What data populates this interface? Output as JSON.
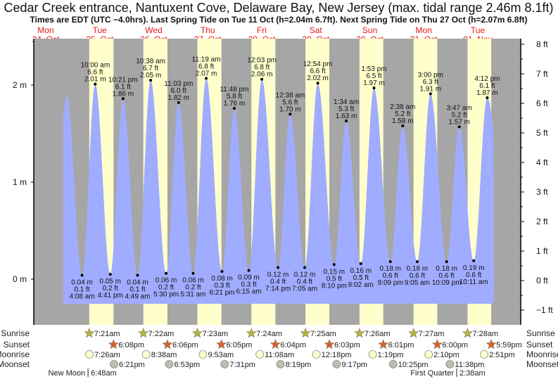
{
  "header": {
    "title": "Cedar Creek entrance, Nantuxent Cove, Delaware Bay, New Jersey (max. tidal range 2.46m 8.1ft)",
    "subtitle": "Times are EDT (UTC −4.0hrs). Last Spring Tide on Tue 11 Oct (h=2.04m 6.7ft). Next Spring Tide on Thu 27 Oct (h=2.07m 6.8ft)"
  },
  "days": [
    {
      "dow": "Mon",
      "date": "24–Oct"
    },
    {
      "dow": "Tue",
      "date": "25–Oct"
    },
    {
      "dow": "Wed",
      "date": "26–Oct"
    },
    {
      "dow": "Thu",
      "date": "27–Oct"
    },
    {
      "dow": "Fri",
      "date": "28–Oct"
    },
    {
      "dow": "Sat",
      "date": "29–Oct"
    },
    {
      "dow": "Sun",
      "date": "30–Oct"
    },
    {
      "dow": "Mon",
      "date": "31–Oct"
    },
    {
      "dow": "Tue",
      "date": "01–Nov"
    }
  ],
  "colors": {
    "night": "#a6a6a6",
    "day": "#ffffcc",
    "water": "#a0acff",
    "day_label": "#e41a1a",
    "sunrise": "#b5b53a",
    "sunset": "#d95f26",
    "moonrise": "#ffffcc",
    "moonset": "#bcbcb0"
  },
  "chart_data": {
    "type": "area",
    "title": "Cedar Creek entrance, Nantuxent Cove, Delaware Bay, New Jersey",
    "y_left": {
      "unit": "m",
      "ticks": [
        "0 m",
        "1 m",
        "2 m"
      ],
      "values": [
        0,
        1,
        2
      ]
    },
    "y_right": {
      "unit": "ft",
      "ticks": [
        "−1 ft",
        "0 ft",
        "1 ft",
        "2 ft",
        "3 ft",
        "4 ft",
        "5 ft",
        "6 ft",
        "7 ft",
        "8 ft"
      ],
      "values": [
        -1,
        0,
        1,
        2,
        3,
        4,
        5,
        6,
        7,
        8
      ]
    },
    "start": {
      "day": 0,
      "time": "7:50 pm",
      "m": 1.7
    },
    "unlabeled_peak": {
      "day": 0,
      "time": "9:20 pm",
      "m": 1.9
    },
    "end": {
      "day": 8,
      "time": "7:12 pm"
    },
    "tides": [
      {
        "day": 1,
        "type": "low",
        "time": "4:08 am",
        "ft": "0.1 ft",
        "m": 0.04,
        "m_label": "0.04 m"
      },
      {
        "day": 1,
        "type": "high",
        "time": "10:00 am",
        "ft": "6.6 ft",
        "m": 2.01,
        "m_label": "2.01 m"
      },
      {
        "day": 1,
        "type": "low",
        "time": "4:41 pm",
        "ft": "0.2 ft",
        "m": 0.05,
        "m_label": "0.05 m"
      },
      {
        "day": 1,
        "type": "high",
        "time": "10:21 pm",
        "ft": "6.1 ft",
        "m": 1.86,
        "m_label": "1.86 m"
      },
      {
        "day": 2,
        "type": "low",
        "time": "4:49 am",
        "ft": "0.1 ft",
        "m": 0.04,
        "m_label": "0.04 m"
      },
      {
        "day": 2,
        "type": "high",
        "time": "10:38 am",
        "ft": "6.7 ft",
        "m": 2.05,
        "m_label": "2.05 m"
      },
      {
        "day": 2,
        "type": "low",
        "time": "5:30 pm",
        "ft": "0.2 ft",
        "m": 0.06,
        "m_label": "0.06 m"
      },
      {
        "day": 2,
        "type": "high",
        "time": "11:03 pm",
        "ft": "6.0 ft",
        "m": 1.82,
        "m_label": "1.82 m"
      },
      {
        "day": 3,
        "type": "low",
        "time": "5:31 am",
        "ft": "0.2 ft",
        "m": 0.06,
        "m_label": "0.06 m"
      },
      {
        "day": 3,
        "type": "high",
        "time": "11:19 am",
        "ft": "6.8 ft",
        "m": 2.07,
        "m_label": "2.07 m"
      },
      {
        "day": 3,
        "type": "low",
        "time": "6:21 pm",
        "ft": "0.3 ft",
        "m": 0.08,
        "m_label": "0.08 m"
      },
      {
        "day": 3,
        "type": "high",
        "time": "11:48 pm",
        "ft": "5.8 ft",
        "m": 1.76,
        "m_label": "1.76 m"
      },
      {
        "day": 4,
        "type": "low",
        "time": "6:15 am",
        "ft": "0.3 ft",
        "m": 0.09,
        "m_label": "0.09 m"
      },
      {
        "day": 4,
        "type": "high",
        "time": "12:03 pm",
        "ft": "6.8 ft",
        "m": 2.06,
        "m_label": "2.06 m"
      },
      {
        "day": 4,
        "type": "low",
        "time": "7:14 pm",
        "ft": "0.4 ft",
        "m": 0.12,
        "m_label": "0.12 m"
      },
      {
        "day": 5,
        "type": "high",
        "time": "12:38 am",
        "ft": "5.6 ft",
        "m": 1.7,
        "m_label": "1.70 m"
      },
      {
        "day": 5,
        "type": "low",
        "time": "7:05 am",
        "ft": "0.4 ft",
        "m": 0.12,
        "m_label": "0.12 m"
      },
      {
        "day": 5,
        "type": "high",
        "time": "12:54 pm",
        "ft": "6.6 ft",
        "m": 2.02,
        "m_label": "2.02 m"
      },
      {
        "day": 5,
        "type": "low",
        "time": "8:10 pm",
        "ft": "0.5 ft",
        "m": 0.15,
        "m_label": "0.15 m"
      },
      {
        "day": 6,
        "type": "high",
        "time": "1:34 am",
        "ft": "5.3 ft",
        "m": 1.63,
        "m_label": "1.63 m"
      },
      {
        "day": 6,
        "type": "low",
        "time": "8:02 am",
        "ft": "0.5 ft",
        "m": 0.16,
        "m_label": "0.16 m"
      },
      {
        "day": 6,
        "type": "high",
        "time": "1:53 pm",
        "ft": "6.5 ft",
        "m": 1.97,
        "m_label": "1.97 m"
      },
      {
        "day": 6,
        "type": "low",
        "time": "9:09 pm",
        "ft": "0.6 ft",
        "m": 0.18,
        "m_label": "0.18 m"
      },
      {
        "day": 7,
        "type": "high",
        "time": "2:38 am",
        "ft": "5.2 ft",
        "m": 1.58,
        "m_label": "1.58 m"
      },
      {
        "day": 7,
        "type": "low",
        "time": "9:05 am",
        "ft": "0.6 ft",
        "m": 0.18,
        "m_label": "0.18 m"
      },
      {
        "day": 7,
        "type": "high",
        "time": "3:00 pm",
        "ft": "6.3 ft",
        "m": 1.91,
        "m_label": "1.91 m"
      },
      {
        "day": 7,
        "type": "low",
        "time": "10:09 pm",
        "ft": "0.6 ft",
        "m": 0.18,
        "m_label": "0.18 m"
      },
      {
        "day": 8,
        "type": "high",
        "time": "3:47 am",
        "ft": "5.2 ft",
        "m": 1.57,
        "m_label": "1.57 m"
      },
      {
        "day": 8,
        "type": "low",
        "time": "10:11 am",
        "ft": "0.6 ft",
        "m": 0.19,
        "m_label": "0.19 m"
      },
      {
        "day": 8,
        "type": "high",
        "time": "4:12 pm",
        "ft": "6.1 ft",
        "m": 1.87,
        "m_label": "1.87 m"
      }
    ]
  },
  "rows": {
    "sunrise": "Sunrise",
    "sunset": "Sunset",
    "moonrise": "Moonrise",
    "moonset": "Moonset"
  },
  "sun_moon": {
    "sunrise": [
      {
        "day": 1,
        "t": "7:21am"
      },
      {
        "day": 2,
        "t": "7:22am"
      },
      {
        "day": 3,
        "t": "7:23am"
      },
      {
        "day": 4,
        "t": "7:24am"
      },
      {
        "day": 5,
        "t": "7:25am"
      },
      {
        "day": 6,
        "t": "7:26am"
      },
      {
        "day": 7,
        "t": "7:27am"
      },
      {
        "day": 8,
        "t": "7:28am"
      }
    ],
    "sunset": [
      {
        "day": 1,
        "t": "6:08pm"
      },
      {
        "day": 2,
        "t": "6:06pm"
      },
      {
        "day": 3,
        "t": "6:05pm"
      },
      {
        "day": 4,
        "t": "6:04pm"
      },
      {
        "day": 5,
        "t": "6:03pm"
      },
      {
        "day": 6,
        "t": "6:01pm"
      },
      {
        "day": 7,
        "t": "6:00pm"
      },
      {
        "day": 8,
        "t": "5:59pm"
      }
    ],
    "moonrise": [
      {
        "day": 1,
        "t": "7:26am"
      },
      {
        "day": 2,
        "t": "8:38am"
      },
      {
        "day": 3,
        "t": "9:53am"
      },
      {
        "day": 4,
        "t": "11:08am"
      },
      {
        "day": 5,
        "t": "12:18pm"
      },
      {
        "day": 6,
        "t": "1:19pm"
      },
      {
        "day": 7,
        "t": "2:10pm"
      },
      {
        "day": 8,
        "t": "2:51pm"
      }
    ],
    "moonset": [
      {
        "day": 1,
        "t": "6:21pm"
      },
      {
        "day": 2,
        "t": "6:53pm"
      },
      {
        "day": 3,
        "t": "7:31pm"
      },
      {
        "day": 4,
        "t": "8:19pm"
      },
      {
        "day": 5,
        "t": "9:17pm"
      },
      {
        "day": 6,
        "t": "10:25pm"
      },
      {
        "day": 7,
        "t": "11:38pm"
      }
    ]
  },
  "moon_phases": [
    {
      "day": 1,
      "name": "New Moon",
      "t": "6:48am"
    },
    {
      "day": 8,
      "name": "First Quarter",
      "t": "2:38am"
    }
  ]
}
